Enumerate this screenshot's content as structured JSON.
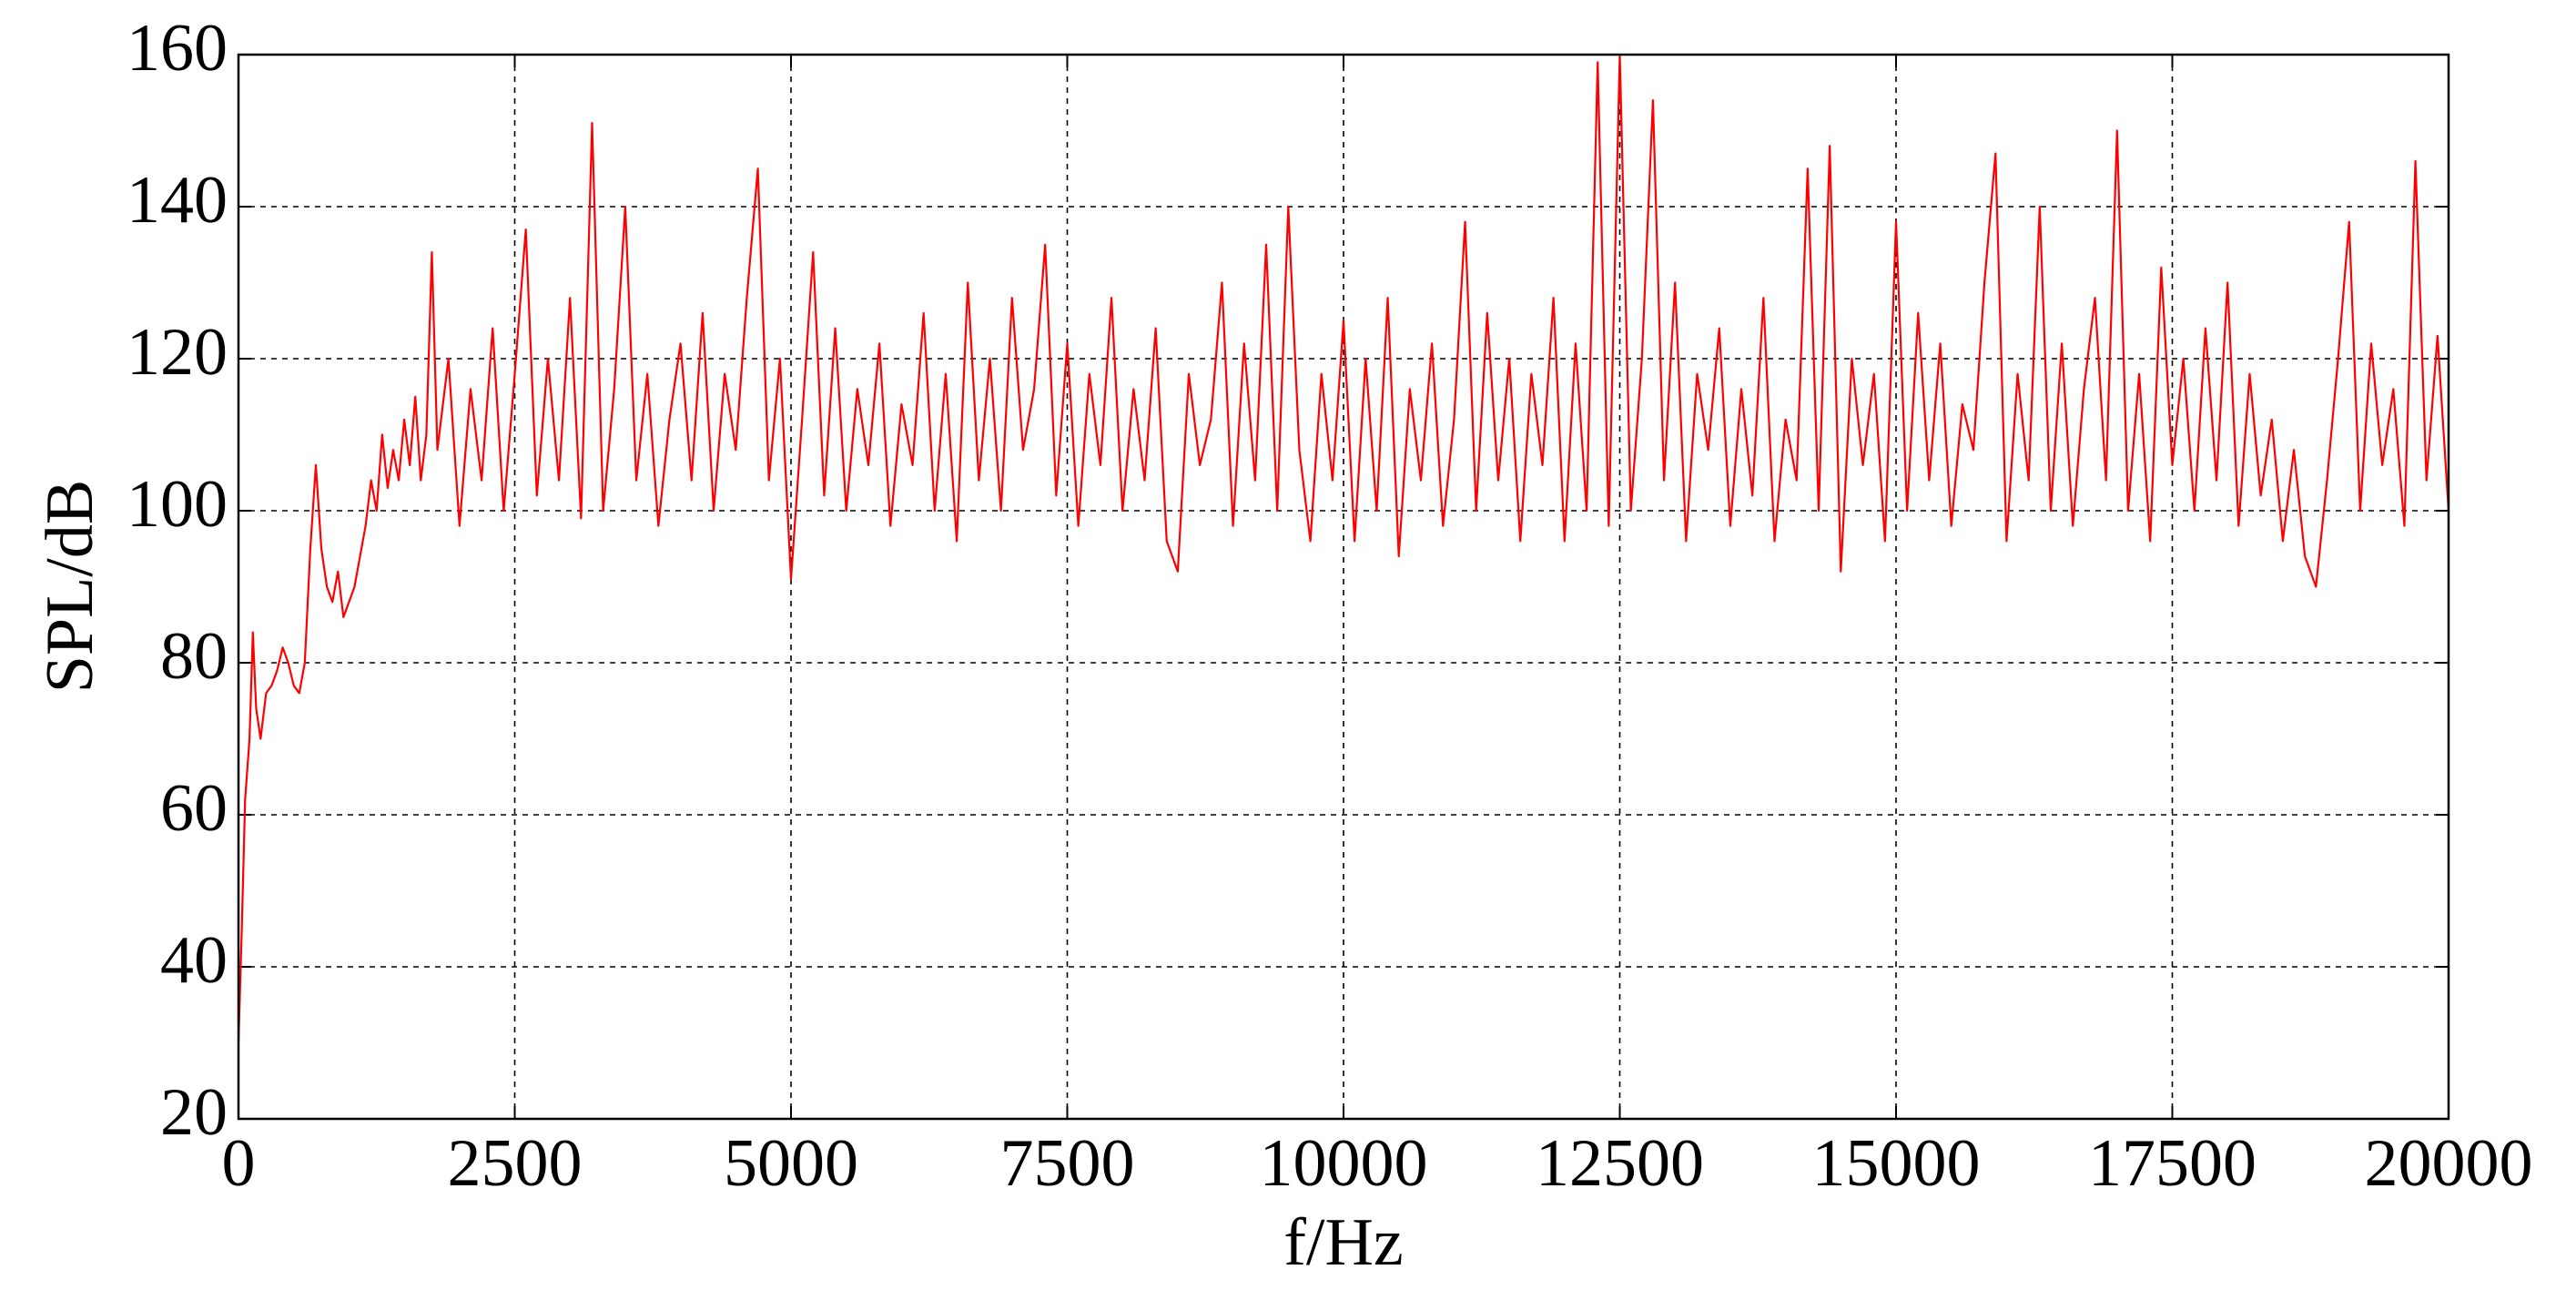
{
  "chart_data": {
    "type": "line",
    "xlabel": "f/Hz",
    "ylabel": "SPL/dB",
    "color": "#ff0000",
    "xlim": [
      0,
      20000
    ],
    "ylim": [
      20,
      160
    ],
    "xticks": [
      0,
      2500,
      5000,
      7500,
      10000,
      12500,
      15000,
      17500,
      20000
    ],
    "yticks": [
      20,
      40,
      60,
      80,
      100,
      120,
      140,
      160
    ],
    "grid": true,
    "x": [
      0,
      30,
      60,
      100,
      130,
      160,
      200,
      250,
      300,
      350,
      400,
      450,
      500,
      550,
      600,
      650,
      700,
      750,
      800,
      850,
      900,
      950,
      1000,
      1050,
      1100,
      1150,
      1200,
      1250,
      1300,
      1350,
      1400,
      1450,
      1500,
      1550,
      1600,
      1650,
      1700,
      1750,
      1800,
      1900,
      2000,
      2100,
      2200,
      2300,
      2400,
      2500,
      2600,
      2700,
      2800,
      2900,
      3000,
      3100,
      3200,
      3300,
      3400,
      3500,
      3600,
      3700,
      3800,
      3900,
      4000,
      4100,
      4200,
      4300,
      4400,
      4500,
      4600,
      4700,
      4800,
      4900,
      5000,
      5100,
      5200,
      5300,
      5400,
      5500,
      5600,
      5700,
      5800,
      5900,
      6000,
      6100,
      6200,
      6300,
      6400,
      6500,
      6600,
      6700,
      6800,
      6900,
      7000,
      7100,
      7200,
      7300,
      7400,
      7500,
      7600,
      7700,
      7800,
      7900,
      8000,
      8100,
      8200,
      8300,
      8400,
      8500,
      8600,
      8700,
      8800,
      8900,
      9000,
      9100,
      9200,
      9300,
      9400,
      9500,
      9600,
      9700,
      9800,
      9900,
      10000,
      10100,
      10200,
      10300,
      10400,
      10500,
      10600,
      10700,
      10800,
      10900,
      11000,
      11100,
      11200,
      11300,
      11400,
      11500,
      11600,
      11700,
      11800,
      11900,
      12000,
      12100,
      12200,
      12300,
      12400,
      12500,
      12600,
      12700,
      12800,
      12900,
      13000,
      13100,
      13200,
      13300,
      13400,
      13500,
      13600,
      13700,
      13800,
      13900,
      14000,
      14100,
      14200,
      14300,
      14400,
      14500,
      14600,
      14700,
      14800,
      14900,
      15000,
      15100,
      15200,
      15300,
      15400,
      15500,
      15600,
      15700,
      15800,
      15900,
      16000,
      16100,
      16200,
      16300,
      16400,
      16500,
      16600,
      16700,
      16800,
      16900,
      17000,
      17100,
      17200,
      17300,
      17400,
      17500,
      17600,
      17700,
      17800,
      17900,
      18000,
      18100,
      18200,
      18300,
      18400,
      18500,
      18600,
      18700,
      18800,
      18900,
      19000,
      19100,
      19200,
      19300,
      19400,
      19500,
      19600,
      19700,
      19800,
      19900,
      20000
    ],
    "values": [
      30,
      45,
      62,
      70,
      84,
      74,
      70,
      76,
      77,
      79,
      82,
      80,
      77,
      76,
      80,
      95,
      106,
      95,
      90,
      88,
      92,
      86,
      88,
      90,
      94,
      98,
      104,
      100,
      110,
      103,
      108,
      104,
      112,
      106,
      115,
      104,
      110,
      134,
      108,
      120,
      98,
      116,
      104,
      124,
      100,
      118,
      137,
      102,
      120,
      104,
      128,
      99,
      151,
      100,
      116,
      140,
      104,
      118,
      98,
      112,
      122,
      104,
      126,
      100,
      118,
      108,
      128,
      145,
      104,
      120,
      91,
      112,
      134,
      102,
      124,
      100,
      116,
      106,
      122,
      98,
      114,
      106,
      126,
      100,
      118,
      96,
      130,
      104,
      120,
      100,
      128,
      108,
      116,
      135,
      102,
      122,
      98,
      118,
      106,
      128,
      100,
      116,
      104,
      124,
      96,
      92,
      118,
      106,
      112,
      130,
      98,
      122,
      104,
      135,
      100,
      140,
      108,
      96,
      118,
      104,
      125,
      96,
      120,
      100,
      128,
      94,
      116,
      104,
      122,
      98,
      112,
      138,
      100,
      126,
      104,
      120,
      96,
      118,
      106,
      128,
      96,
      122,
      100,
      159,
      98,
      160,
      100,
      120,
      154,
      104,
      130,
      96,
      118,
      108,
      124,
      98,
      116,
      102,
      128,
      96,
      112,
      104,
      145,
      100,
      148,
      92,
      120,
      106,
      118,
      96,
      138,
      100,
      126,
      104,
      122,
      98,
      114,
      108,
      130,
      147,
      96,
      118,
      104,
      140,
      100,
      122,
      98,
      116,
      128,
      104,
      150,
      100,
      118,
      96,
      132,
      106,
      120,
      100,
      124,
      104,
      130,
      98,
      118,
      102,
      112,
      96,
      108,
      94,
      90,
      104,
      120,
      138,
      100,
      122,
      106,
      116,
      98,
      146,
      104,
      123,
      100
    ]
  }
}
